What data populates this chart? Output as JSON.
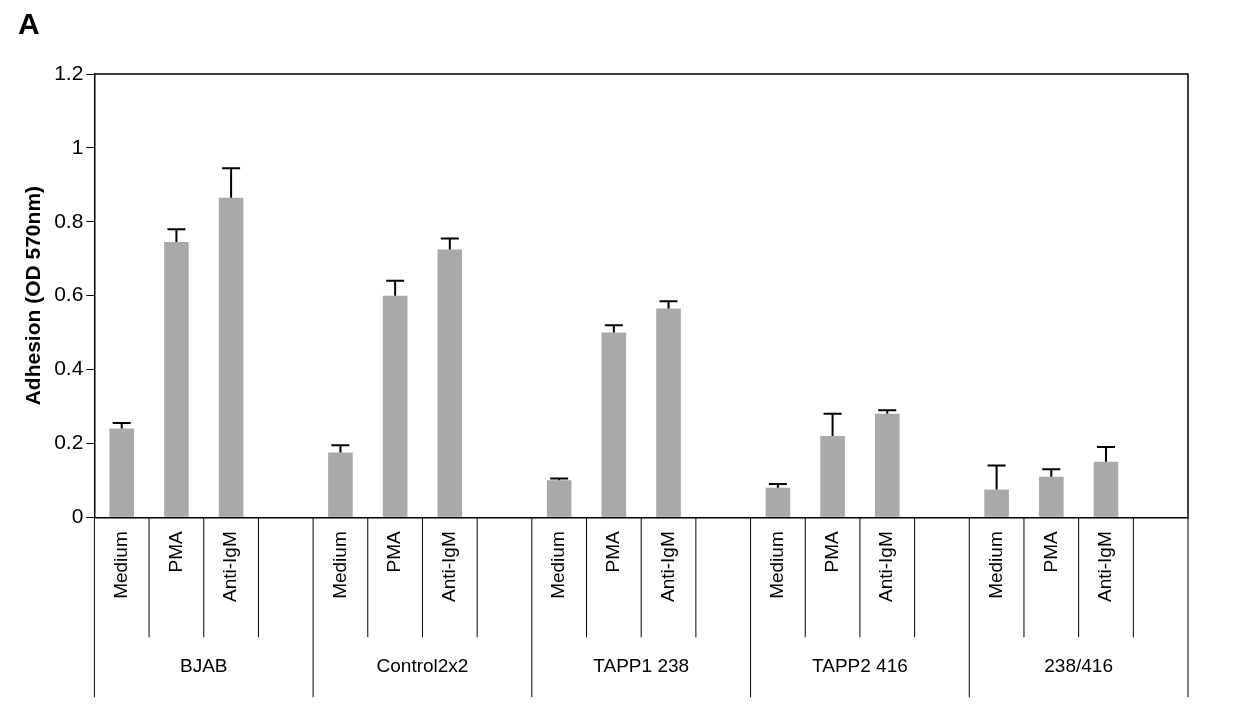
{
  "chart_data": {
    "type": "bar",
    "title": "A",
    "ylabel": "Adhesion (OD 570nm)",
    "categories": [
      "Medium",
      "PMA",
      "Anti-IgM",
      null,
      "Medium",
      "PMA",
      "Anti-IgM",
      null,
      "Medium",
      "PMA",
      "Anti-IgM",
      null,
      "Medium",
      "PMA",
      "Anti-IgM",
      null,
      "Medium",
      "PMA",
      "Anti-IgM",
      null
    ],
    "values": [
      0.24,
      0.745,
      0.865,
      null,
      0.175,
      0.6,
      0.725,
      null,
      0.1,
      0.5,
      0.565,
      null,
      0.08,
      0.22,
      0.28,
      null,
      0.075,
      0.11,
      0.15,
      null
    ],
    "errors": [
      [
        0.24,
        0.255
      ],
      [
        0.745,
        0.78
      ],
      [
        0.865,
        0.945
      ],
      null,
      [
        0.175,
        0.195
      ],
      [
        0.6,
        0.64
      ],
      [
        0.725,
        0.755
      ],
      null,
      [
        0.1,
        0.105
      ],
      [
        0.5,
        0.52
      ],
      [
        0.565,
        0.585
      ],
      null,
      [
        0.08,
        0.09
      ],
      [
        0.22,
        0.28
      ],
      [
        0.28,
        0.29
      ],
      null,
      [
        0.075,
        0.14
      ],
      [
        0.11,
        0.13
      ],
      [
        0.15,
        0.19
      ],
      null
    ],
    "color": "#a9a9a9",
    "annotations": [
      "BJAB",
      "Control2x2",
      "TAPP1 238",
      "TAPP2 416",
      "238/416"
    ],
    "ylim": [
      0,
      1.2
    ],
    "yticks": [
      0,
      0.2,
      0.4,
      0.6,
      0.8,
      1,
      1.2
    ],
    "grid": false,
    "legend": false
  }
}
